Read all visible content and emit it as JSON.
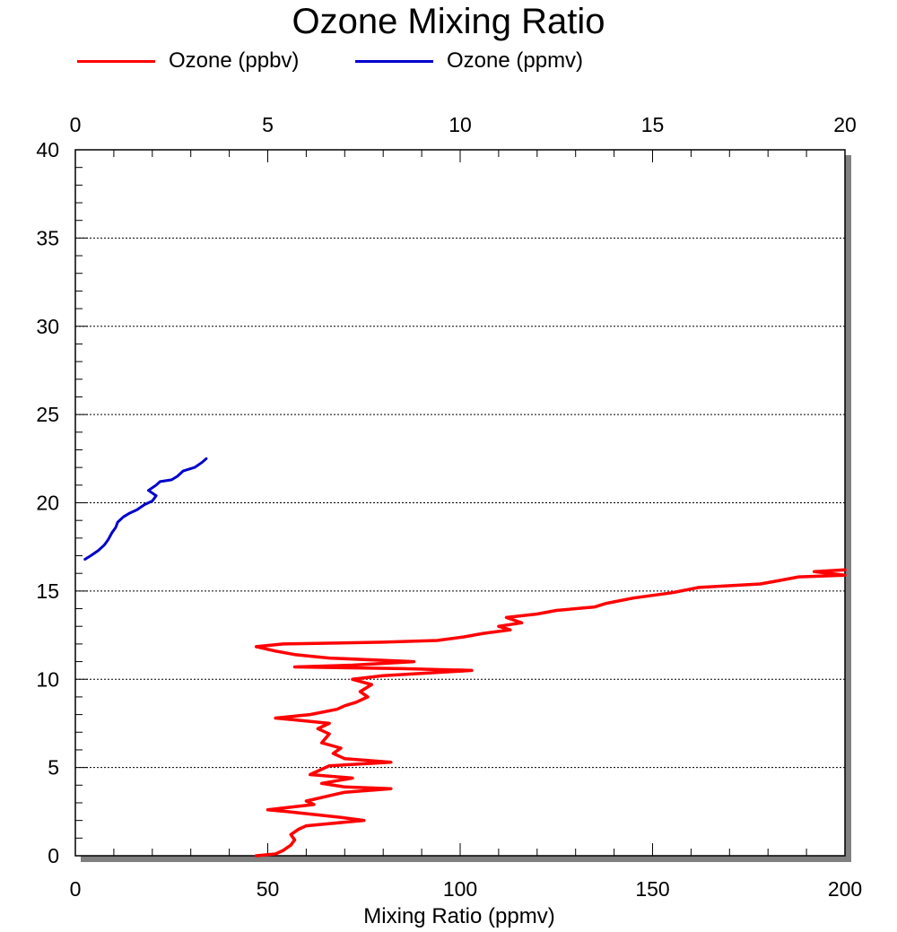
{
  "chart_data": {
    "type": "line",
    "title": "Ozone Mixing Ratio",
    "xlabel": "Mixing Ratio (ppmv)",
    "ylabel": "",
    "grid": "horizontal dotted",
    "legend_position": "top",
    "x_bottom": {
      "range": [
        0,
        200
      ],
      "ticks": [
        "0",
        "50",
        "100",
        "150",
        "200"
      ]
    },
    "x_top": {
      "range": [
        0,
        20
      ],
      "ticks": [
        "0",
        "5",
        "10",
        "15",
        "20"
      ]
    },
    "y": {
      "range": [
        0,
        40
      ],
      "ticks": [
        "0",
        "5",
        "10",
        "15",
        "20",
        "25",
        "30",
        "35",
        "40"
      ]
    },
    "series": [
      {
        "name": "Ozone (ppbv)",
        "color": "#ff0000",
        "axis": "bottom",
        "points": [
          [
            47,
            0.0
          ],
          [
            52,
            0.1
          ],
          [
            54,
            0.3
          ],
          [
            56,
            0.6
          ],
          [
            57,
            0.9
          ],
          [
            56,
            1.2
          ],
          [
            58,
            1.5
          ],
          [
            60,
            1.7
          ],
          [
            75,
            2.0
          ],
          [
            68,
            2.2
          ],
          [
            55,
            2.5
          ],
          [
            50,
            2.6
          ],
          [
            62,
            2.9
          ],
          [
            60,
            3.1
          ],
          [
            66,
            3.4
          ],
          [
            70,
            3.6
          ],
          [
            82,
            3.8
          ],
          [
            70,
            3.9
          ],
          [
            64,
            4.1
          ],
          [
            72,
            4.4
          ],
          [
            61,
            4.6
          ],
          [
            64,
            4.9
          ],
          [
            66,
            5.1
          ],
          [
            82,
            5.3
          ],
          [
            70,
            5.5
          ],
          [
            67,
            5.8
          ],
          [
            69,
            6.1
          ],
          [
            64,
            6.4
          ],
          [
            66,
            6.9
          ],
          [
            63,
            7.2
          ],
          [
            66,
            7.5
          ],
          [
            57,
            7.7
          ],
          [
            52,
            7.8
          ],
          [
            61,
            8.0
          ],
          [
            68,
            8.3
          ],
          [
            70,
            8.5
          ],
          [
            73,
            8.7
          ],
          [
            76,
            9.0
          ],
          [
            74,
            9.3
          ],
          [
            77,
            9.7
          ],
          [
            72,
            10.0
          ],
          [
            80,
            10.2
          ],
          [
            103,
            10.5
          ],
          [
            85,
            10.6
          ],
          [
            57,
            10.7
          ],
          [
            72,
            10.8
          ],
          [
            88,
            11.0
          ],
          [
            66,
            11.2
          ],
          [
            57,
            11.4
          ],
          [
            52,
            11.6
          ],
          [
            47,
            11.85
          ],
          [
            54,
            12.0
          ],
          [
            80,
            12.1
          ],
          [
            94,
            12.2
          ],
          [
            101,
            12.4
          ],
          [
            106,
            12.6
          ],
          [
            113,
            12.8
          ],
          [
            110,
            13.0
          ],
          [
            116,
            13.2
          ],
          [
            112,
            13.5
          ],
          [
            120,
            13.7
          ],
          [
            125,
            13.9
          ],
          [
            135,
            14.1
          ],
          [
            138,
            14.3
          ],
          [
            145,
            14.6
          ],
          [
            155,
            14.9
          ],
          [
            162,
            15.2
          ],
          [
            178,
            15.4
          ],
          [
            183,
            15.6
          ],
          [
            188,
            15.8
          ],
          [
            200,
            15.9
          ],
          [
            196,
            16.0
          ],
          [
            192,
            16.1
          ],
          [
            200,
            16.2
          ]
        ]
      },
      {
        "name": "Ozone (ppmv)",
        "color": "#0000cc",
        "axis": "top",
        "points": [
          [
            0.25,
            16.8
          ],
          [
            0.4,
            17.0
          ],
          [
            0.6,
            17.3
          ],
          [
            0.75,
            17.6
          ],
          [
            0.85,
            17.9
          ],
          [
            0.95,
            18.3
          ],
          [
            1.05,
            18.6
          ],
          [
            1.1,
            18.9
          ],
          [
            1.25,
            19.2
          ],
          [
            1.4,
            19.4
          ],
          [
            1.6,
            19.6
          ],
          [
            1.8,
            19.9
          ],
          [
            2.0,
            20.1
          ],
          [
            2.1,
            20.4
          ],
          [
            1.9,
            20.7
          ],
          [
            2.1,
            21.0
          ],
          [
            2.2,
            21.2
          ],
          [
            2.5,
            21.3
          ],
          [
            2.65,
            21.5
          ],
          [
            2.8,
            21.8
          ],
          [
            3.1,
            22.0
          ],
          [
            3.3,
            22.3
          ],
          [
            3.4,
            22.5
          ]
        ]
      }
    ]
  }
}
